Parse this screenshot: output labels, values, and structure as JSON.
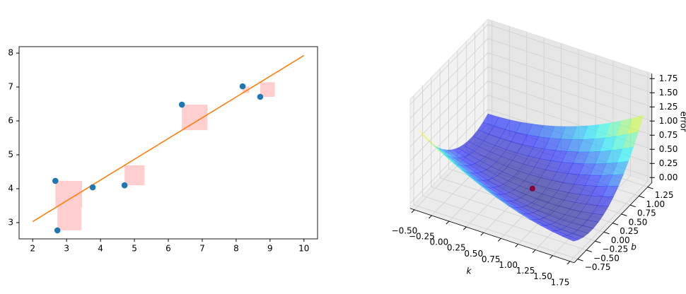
{
  "chart_data": [
    {
      "type": "scatter",
      "x": [
        2.67,
        2.73,
        3.77,
        4.71,
        6.4,
        8.19,
        8.71
      ],
      "values": [
        4.23,
        2.77,
        4.04,
        4.1,
        6.48,
        7.02,
        6.71
      ],
      "color": "#1f77b4",
      "fit": {
        "x": [
          2,
          10
        ],
        "values": [
          3.03,
          7.93
        ],
        "color": "#ff7f0e"
      },
      "square_color": "#ffcccc",
      "xlim": [
        1.6,
        10.4
      ],
      "ylim": [
        2.52,
        8.19
      ],
      "xticks": [
        2,
        3,
        4,
        5,
        6,
        7,
        8,
        9,
        10
      ],
      "yticks": [
        3,
        4,
        5,
        6,
        7,
        8
      ]
    },
    {
      "type": "surface3d",
      "xlabel": "k",
      "ylabel": "b",
      "zlabel": "error",
      "colormap": "jet",
      "xlim": [
        -0.56,
        1.81
      ],
      "ylim": [
        -0.85,
        1.37
      ],
      "zlim": [
        -0.09,
        1.84
      ],
      "xticks": [
        {
          "value": -0.5,
          "label": "−0.50"
        },
        {
          "value": -0.25,
          "label": "−0.25"
        },
        {
          "value": 0,
          "label": "0.00"
        },
        {
          "value": 0.25,
          "label": "0.25"
        },
        {
          "value": 0.5,
          "label": "0.50"
        },
        {
          "value": 0.75,
          "label": "0.75"
        },
        {
          "value": 1,
          "label": "1.00"
        },
        {
          "value": 1.25,
          "label": "1.25"
        },
        {
          "value": 1.5,
          "label": "1.50"
        },
        {
          "value": 1.75,
          "label": "1.75"
        }
      ],
      "yticks": [
        {
          "value": -0.75,
          "label": "−0.75"
        },
        {
          "value": -0.5,
          "label": "−0.50"
        },
        {
          "value": -0.25,
          "label": "−0.25"
        },
        {
          "value": 0,
          "label": "0.00"
        },
        {
          "value": 0.25,
          "label": "0.25"
        },
        {
          "value": 0.5,
          "label": "0.50"
        },
        {
          "value": 0.75,
          "label": "0.75"
        },
        {
          "value": 1,
          "label": "1.00"
        },
        {
          "value": 1.25,
          "label": "1.25"
        }
      ],
      "zticks": [
        {
          "value": 0,
          "label": "0.00"
        },
        {
          "value": 0.25,
          "label": "0.25"
        },
        {
          "value": 0.5,
          "label": "0.50"
        },
        {
          "value": 0.75,
          "label": "0.75"
        },
        {
          "value": 1,
          "label": "1.00"
        },
        {
          "value": 1.25,
          "label": "1.25"
        },
        {
          "value": 1.5,
          "label": "1.50"
        },
        {
          "value": 1.75,
          "label": "1.75"
        }
      ],
      "min_point": {
        "k": 0.65,
        "b": 0.25,
        "error": 0.05,
        "color": "#8b0033"
      }
    }
  ]
}
